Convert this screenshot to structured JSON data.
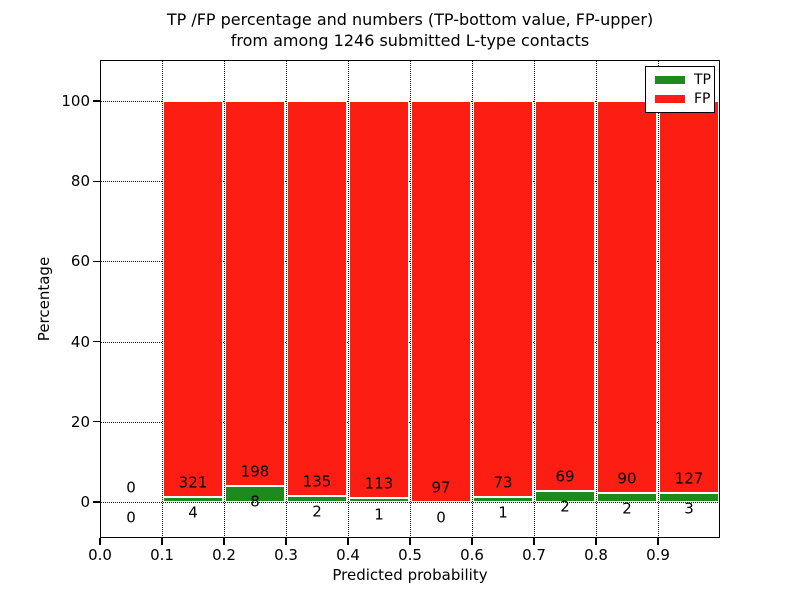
{
  "title": {
    "line1": "TP /FP percentage and numbers (TP-bottom value, FP-upper)",
    "line2": "from among 1246 submitted L-type contacts"
  },
  "axes": {
    "xlabel": "Predicted probability",
    "ylabel": "Percentage",
    "yticks": [
      0,
      20,
      40,
      60,
      80,
      100
    ],
    "xticks": [
      "0.0",
      "0.1",
      "0.2",
      "0.3",
      "0.4",
      "0.5",
      "0.6",
      "0.7",
      "0.8",
      "0.9"
    ]
  },
  "legend": {
    "items": [
      {
        "label": "TP",
        "color": "#1c8a1c"
      },
      {
        "label": "FP",
        "color": "#fc1d13"
      }
    ]
  },
  "chart_data": {
    "type": "bar",
    "stacked": true,
    "title": "TP /FP percentage and numbers (TP-bottom value, FP-upper) from among 1246 submitted L-type contacts",
    "xlabel": "Predicted probability",
    "ylabel": "Percentage",
    "total_contacts": 1246,
    "xlim": [
      0.0,
      1.0
    ],
    "ylim": [
      -9,
      110
    ],
    "grid": "dotted",
    "legend_position": "upper right",
    "bin_edges": [
      0.0,
      0.1,
      0.2,
      0.3,
      0.4,
      0.5,
      0.6,
      0.7,
      0.8,
      0.9,
      1.0
    ],
    "series": [
      {
        "name": "TP",
        "color": "#1c8a1c",
        "counts": [
          0,
          4,
          8,
          2,
          1,
          0,
          1,
          2,
          2,
          3
        ]
      },
      {
        "name": "FP",
        "color": "#fc1d13",
        "counts": [
          0,
          321,
          198,
          135,
          113,
          97,
          73,
          69,
          90,
          127
        ]
      }
    ],
    "value_representation": "Each bin is stacked to 100%; green segment height = TP/(TP+FP)*100, red = FP share. Text labels show raw counts (FP above, TP below)."
  }
}
